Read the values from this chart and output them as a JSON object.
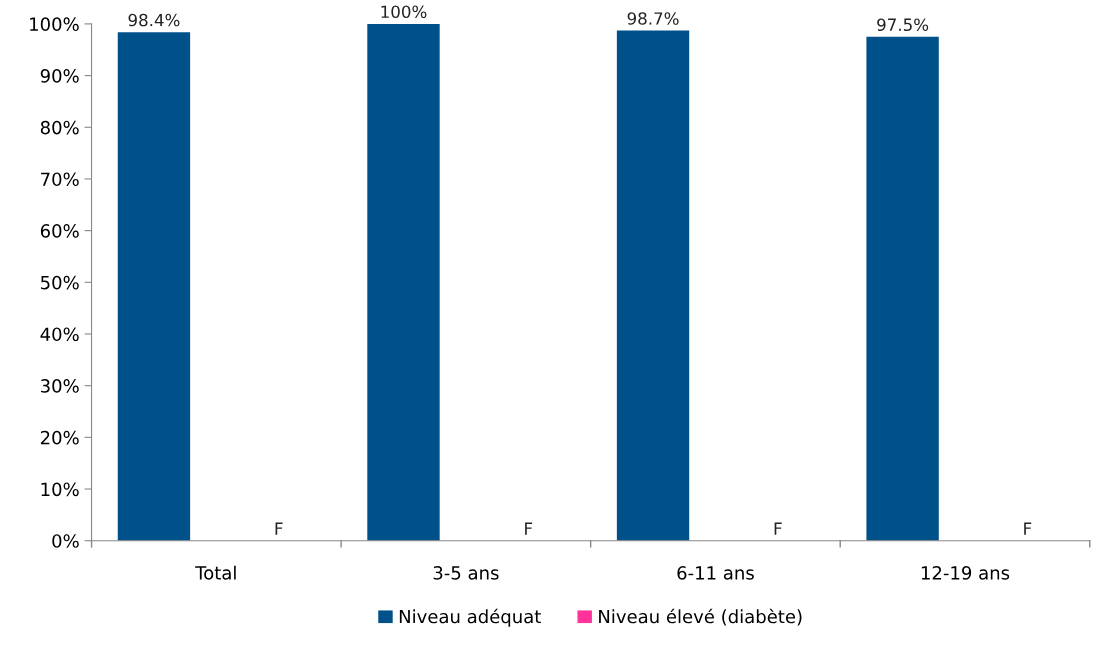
{
  "chart_data": {
    "type": "bar",
    "categories": [
      "Total",
      "3-5 ans",
      "6-11 ans",
      "12-19 ans"
    ],
    "series": [
      {
        "name": "Niveau adéquat",
        "color": "#00508a",
        "values": [
          98.4,
          100,
          98.7,
          97.5
        ],
        "value_labels": [
          "98.4%",
          "100%",
          "98.7%",
          "97.5%"
        ]
      },
      {
        "name": "Niveau élevé (diabète)",
        "color": "#ff3399",
        "values": [
          null,
          null,
          null,
          null
        ],
        "value_labels": [
          "F",
          "F",
          "F",
          "F"
        ]
      }
    ],
    "ylim": [
      0,
      100
    ],
    "yticks": [
      {
        "value": 0,
        "label": "0%"
      },
      {
        "value": 10,
        "label": "10%"
      },
      {
        "value": 20,
        "label": "20%"
      },
      {
        "value": 30,
        "label": "30%"
      },
      {
        "value": 40,
        "label": "40%"
      },
      {
        "value": 50,
        "label": "50%"
      },
      {
        "value": 60,
        "label": "60%"
      },
      {
        "value": 70,
        "label": "70%"
      },
      {
        "value": 80,
        "label": "80%"
      },
      {
        "value": 90,
        "label": "90%"
      },
      {
        "value": 100,
        "label": "100%"
      }
    ],
    "grid": false,
    "legend": "bottom"
  }
}
